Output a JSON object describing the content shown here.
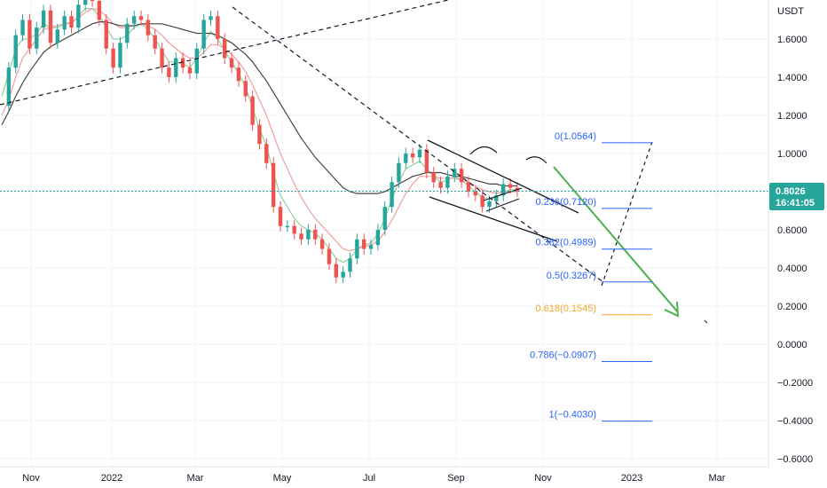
{
  "chart_data": {
    "type": "candlestick",
    "title": "",
    "ylabel": "USDT",
    "ylim": [
      -0.6,
      1.85
    ],
    "grid": true,
    "x_ticks": [
      "Nov",
      "2022",
      "Mar",
      "May",
      "Jul",
      "Sep",
      "Nov",
      "2023",
      "Mar"
    ],
    "y_ticks": [
      "1.6000",
      "1.4000",
      "1.2000",
      "1.0000",
      "0.8000",
      "0.6000",
      "0.4000",
      "0.2000",
      "0.0000",
      "−0.2000",
      "−0.4000",
      "−0.6000"
    ],
    "y_tick_values": [
      1.6,
      1.4,
      1.2,
      1.0,
      0.8,
      0.6,
      0.4,
      0.2,
      0.0,
      -0.2,
      -0.4,
      -0.6
    ],
    "last_price": {
      "value": 0.8026,
      "label": "0.8026",
      "countdown": "16:41:05",
      "color": "#26a69a"
    },
    "price_path": [
      1.25,
      1.45,
      1.62,
      1.7,
      1.55,
      1.66,
      1.75,
      1.58,
      1.65,
      1.72,
      1.66,
      1.78,
      1.84,
      1.8,
      1.7,
      1.55,
      1.45,
      1.58,
      1.68,
      1.72,
      1.7,
      1.62,
      1.55,
      1.45,
      1.4,
      1.5,
      1.45,
      1.42,
      1.55,
      1.7,
      1.72,
      1.6,
      1.5,
      1.45,
      1.38,
      1.3,
      1.15,
      1.05,
      0.95,
      0.72,
      0.62,
      0.62,
      0.58,
      0.55,
      0.6,
      0.55,
      0.5,
      0.42,
      0.35,
      0.38,
      0.45,
      0.55,
      0.5,
      0.52,
      0.6,
      0.72,
      0.85,
      0.95,
      1.0,
      0.98,
      1.02,
      0.9,
      0.85,
      0.82,
      0.88,
      0.92,
      0.85,
      0.8,
      0.78,
      0.72,
      0.75,
      0.78,
      0.84,
      0.82,
      0.8026
    ],
    "moving_averages": [
      {
        "color": "#8fd19e",
        "values": [
          1.3,
          1.42,
          1.55,
          1.6,
          1.6,
          1.63,
          1.68,
          1.66,
          1.66,
          1.68,
          1.68,
          1.72,
          1.76,
          1.76,
          1.72,
          1.66,
          1.6,
          1.6,
          1.62,
          1.66,
          1.68,
          1.65,
          1.6,
          1.54,
          1.48,
          1.48,
          1.47,
          1.45,
          1.5,
          1.58,
          1.64,
          1.6,
          1.54,
          1.48,
          1.42,
          1.35,
          1.24,
          1.13,
          1.04,
          0.9,
          0.78,
          0.72,
          0.66,
          0.62,
          0.6,
          0.58,
          0.55,
          0.5,
          0.45,
          0.43,
          0.45,
          0.5,
          0.52,
          0.53,
          0.58,
          0.66,
          0.76,
          0.85,
          0.92,
          0.94,
          0.96,
          0.92,
          0.88,
          0.85,
          0.86,
          0.88,
          0.86,
          0.83,
          0.8,
          0.77,
          0.76,
          0.77,
          0.8,
          0.81,
          0.81
        ]
      },
      {
        "color": "#f29d9d",
        "values": [
          1.2,
          1.28,
          1.4,
          1.5,
          1.55,
          1.6,
          1.65,
          1.66,
          1.67,
          1.68,
          1.69,
          1.71,
          1.74,
          1.76,
          1.75,
          1.72,
          1.68,
          1.66,
          1.66,
          1.67,
          1.68,
          1.67,
          1.65,
          1.62,
          1.58,
          1.55,
          1.52,
          1.5,
          1.5,
          1.53,
          1.57,
          1.57,
          1.55,
          1.52,
          1.48,
          1.43,
          1.36,
          1.28,
          1.2,
          1.1,
          1.0,
          0.92,
          0.84,
          0.77,
          0.71,
          0.66,
          0.62,
          0.58,
          0.54,
          0.5,
          0.49,
          0.5,
          0.51,
          0.52,
          0.54,
          0.59,
          0.65,
          0.72,
          0.79,
          0.84,
          0.88,
          0.88,
          0.88,
          0.87,
          0.87,
          0.87,
          0.86,
          0.85,
          0.83,
          0.81,
          0.8,
          0.79,
          0.8,
          0.8,
          0.8
        ]
      },
      {
        "color": "#444444",
        "values": [
          1.15,
          1.22,
          1.3,
          1.37,
          1.43,
          1.48,
          1.53,
          1.56,
          1.58,
          1.6,
          1.62,
          1.64,
          1.66,
          1.68,
          1.69,
          1.69,
          1.68,
          1.67,
          1.67,
          1.67,
          1.68,
          1.68,
          1.68,
          1.68,
          1.67,
          1.66,
          1.65,
          1.64,
          1.63,
          1.63,
          1.63,
          1.62,
          1.6,
          1.58,
          1.55,
          1.52,
          1.48,
          1.43,
          1.38,
          1.32,
          1.26,
          1.2,
          1.14,
          1.08,
          1.03,
          0.98,
          0.94,
          0.9,
          0.86,
          0.82,
          0.8,
          0.79,
          0.79,
          0.79,
          0.79,
          0.8,
          0.82,
          0.84,
          0.86,
          0.88,
          0.89,
          0.9,
          0.9,
          0.9,
          0.89,
          0.88,
          0.88,
          0.87,
          0.86,
          0.85,
          0.84,
          0.84,
          0.83,
          0.83,
          0.83
        ]
      }
    ],
    "fibonacci_levels": [
      {
        "ratio": "0",
        "price": 1.0564,
        "label": "0(1.0564)",
        "color": "#2962ff"
      },
      {
        "ratio": "0.236",
        "price": 0.712,
        "label": "0.236(0.7120)",
        "color": "#2962ff"
      },
      {
        "ratio": "0.382",
        "price": 0.4989,
        "label": "0.382(0.4989)",
        "color": "#2962ff"
      },
      {
        "ratio": "0.5",
        "price": 0.3267,
        "label": "0.5(0.3267)",
        "color": "#2962ff"
      },
      {
        "ratio": "0.618",
        "price": 0.1545,
        "label": "0.618(0.1545)",
        "color": "#f5a623"
      },
      {
        "ratio": "0.786",
        "price": -0.0907,
        "label": "0.786(−0.0907)",
        "color": "#2962ff"
      },
      {
        "ratio": "1",
        "price": -0.403,
        "label": "1(−0.4030)",
        "color": "#2962ff"
      }
    ],
    "projection_arrow_color": "#4caf50",
    "last_price_line_color": "#26a69a"
  }
}
